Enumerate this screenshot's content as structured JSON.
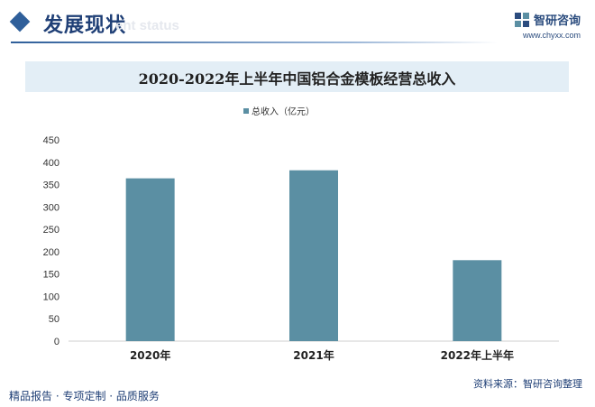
{
  "header": {
    "title": "发展现状",
    "subtitle": "ent status",
    "brand_name": "智研咨询",
    "brand_url": "www.chyxx.com"
  },
  "footer": {
    "left": "精品报告 · 专项定制 · 品质服务",
    "source": "资料来源：智研咨询整理"
  },
  "watermark": "智研咨询",
  "colors": {
    "bar": "#5b8fa3",
    "title_band": "#e3eef6",
    "accent": "#1f3f76"
  },
  "chart_data": {
    "type": "bar",
    "title": "2020-2022年上半年中国铝合金模板经营总收入",
    "categories": [
      "2020年",
      "2021年",
      "2022年上半年"
    ],
    "series": [
      {
        "name": "总收入（亿元）",
        "values": [
          364,
          382,
          181
        ]
      }
    ],
    "ylim": [
      0,
      450
    ],
    "yticks": [
      0,
      50,
      100,
      150,
      200,
      250,
      300,
      350,
      400,
      450
    ],
    "grid": false,
    "legend": "top-center"
  }
}
